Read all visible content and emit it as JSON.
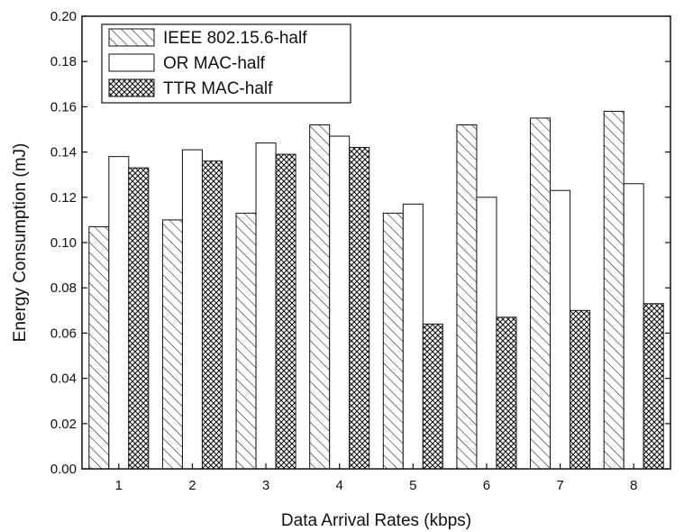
{
  "chart_data": {
    "type": "bar",
    "categories": [
      "1",
      "2",
      "3",
      "4",
      "5",
      "6",
      "7",
      "8"
    ],
    "series": [
      {
        "name": "IEEE 802.15.6-half",
        "pattern": "diagonal-hatch",
        "values": [
          0.107,
          0.11,
          0.113,
          0.152,
          0.113,
          0.152,
          0.155,
          0.158
        ]
      },
      {
        "name": "OR MAC-half",
        "pattern": "solid-white",
        "values": [
          0.138,
          0.141,
          0.144,
          0.147,
          0.117,
          0.12,
          0.123,
          0.126
        ]
      },
      {
        "name": "TTR MAC-half",
        "pattern": "crosshatch",
        "values": [
          0.133,
          0.136,
          0.139,
          0.142,
          0.064,
          0.067,
          0.07,
          0.073
        ]
      }
    ],
    "xlabel": "Data Arrival Rates (kbps)",
    "ylabel": "Energy Consumption (mJ)",
    "ylim": [
      0,
      0.2
    ],
    "yticks": [
      "0.00",
      "0.02",
      "0.04",
      "0.06",
      "0.08",
      "0.10",
      "0.12",
      "0.14",
      "0.16",
      "0.18",
      "0.20"
    ],
    "grid": false,
    "legend_position": "top-left"
  }
}
